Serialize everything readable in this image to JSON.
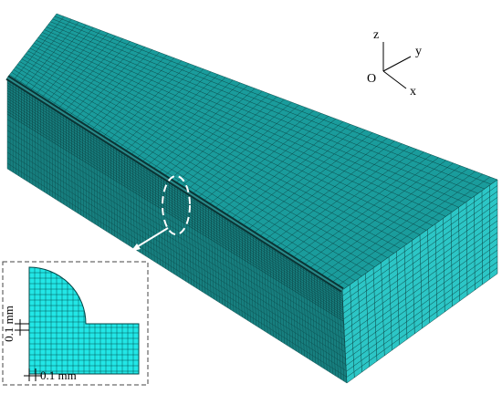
{
  "axes": {
    "z": "z",
    "y": "y",
    "x": "x",
    "origin": "O"
  },
  "inset": {
    "vertical_dimension": "0.1 mm",
    "horizontal_dimension": "0.1 mm"
  }
}
